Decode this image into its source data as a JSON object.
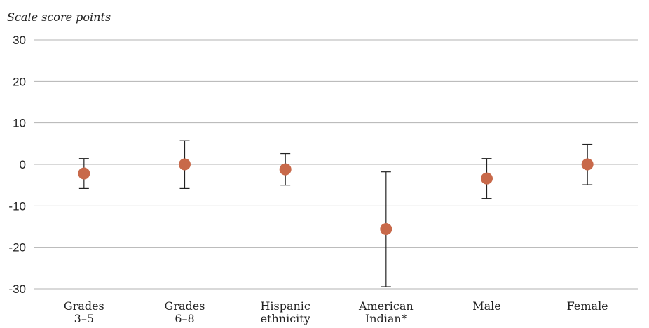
{
  "chart_data": {
    "type": "scatter",
    "title": "",
    "xlabel": "",
    "ylabel": "Scale score points",
    "ylim": [
      -30,
      30
    ],
    "yticks": [
      "30",
      "20",
      "10",
      "0",
      "-10",
      "-20",
      "-30"
    ],
    "grid": true,
    "categories": [
      [
        "Grades",
        "3–5"
      ],
      [
        "Grades",
        "6–8"
      ],
      [
        "Hispanic",
        "ethnicity"
      ],
      [
        "American",
        "Indian*"
      ],
      [
        "Male"
      ],
      [
        "Female"
      ]
    ],
    "values": [
      -2.2,
      0,
      -1.2,
      -15.6,
      -3.4,
      0
    ],
    "error_low": [
      -5.8,
      -5.8,
      -5,
      -29.5,
      -8.2,
      -4.9
    ],
    "error_high": [
      1.4,
      5.7,
      2.6,
      -1.8,
      1.4,
      4.8
    ],
    "colors": {
      "marker": "#c8694a",
      "gridline": "#b3b3b3",
      "whisker": "#222222"
    }
  }
}
